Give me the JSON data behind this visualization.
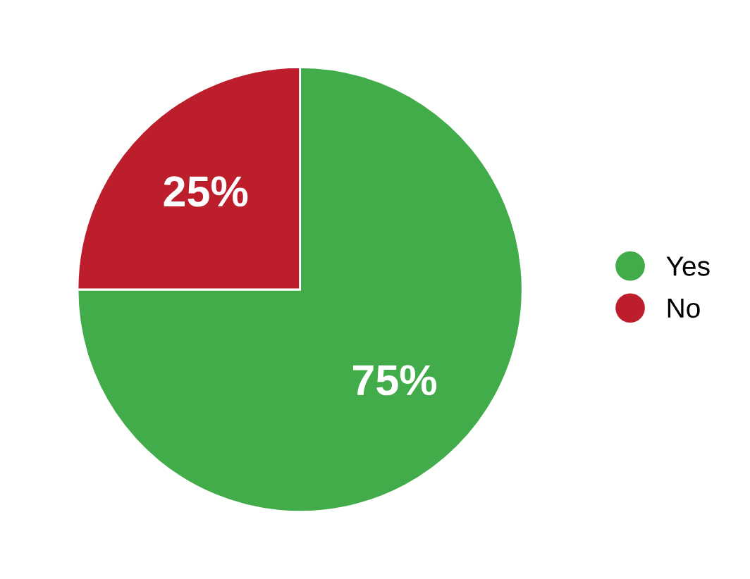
{
  "chart_data": {
    "type": "pie",
    "categories": [
      "Yes",
      "No"
    ],
    "values": [
      75,
      25
    ],
    "colors": [
      "#43ac4a",
      "#bc1f2b"
    ],
    "value_labels": [
      "75%",
      "25%"
    ],
    "legend": "right"
  }
}
